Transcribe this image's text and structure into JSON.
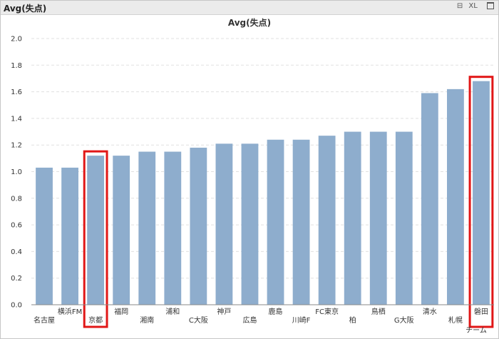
{
  "window": {
    "title": "Avg(失点)",
    "buttons": [
      "⊟",
      "XL",
      "_"
    ]
  },
  "chart_data": {
    "type": "bar",
    "title": "Avg(失点)",
    "xlabel": "チーム",
    "ylabel": "",
    "ylim": [
      0,
      2.0
    ],
    "yticks": [
      0.0,
      0.2,
      0.4,
      0.6,
      0.8,
      1.0,
      1.2,
      1.4,
      1.6,
      1.8,
      2.0
    ],
    "grid": true,
    "categories": [
      "名古屋",
      "横浜FM",
      "京都",
      "福岡",
      "湘南",
      "浦和",
      "C大阪",
      "神戸",
      "広島",
      "鹿島",
      "川崎F",
      "FC東京",
      "柏",
      "鳥栖",
      "G大阪",
      "清水",
      "札幌",
      "磐田"
    ],
    "values": [
      1.03,
      1.03,
      1.12,
      1.12,
      1.15,
      1.15,
      1.18,
      1.21,
      1.21,
      1.24,
      1.24,
      1.27,
      1.3,
      1.3,
      1.3,
      1.59,
      1.62,
      1.68
    ],
    "highlighted": [
      "京都",
      "磐田"
    ],
    "colors": {
      "bar": "#8eadcd",
      "highlight": "#e11717"
    }
  }
}
